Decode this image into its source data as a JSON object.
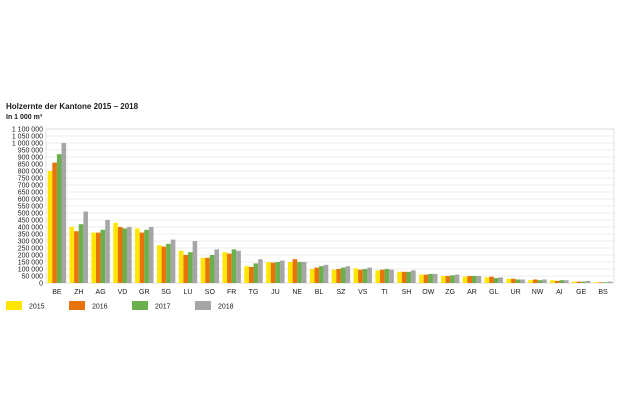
{
  "chart_data": {
    "type": "bar",
    "title": "Holzernte der Kantone 2015 – 2018",
    "ylabel": "In 1 000 m³",
    "xlabel": "",
    "ylim": [
      0,
      1100000
    ],
    "yticks": [
      0,
      50000,
      100000,
      150000,
      200000,
      250000,
      300000,
      350000,
      400000,
      450000,
      500000,
      550000,
      600000,
      650000,
      700000,
      750000,
      800000,
      850000,
      900000,
      950000,
      1000000,
      1050000,
      1100000
    ],
    "ytick_labels": [
      "0",
      "50 000",
      "100 000",
      "150 000",
      "200 000",
      "250 000",
      "300 000",
      "350 000",
      "400 000",
      "450 000",
      "500 000",
      "550 000",
      "600 000",
      "650 000",
      "700 000",
      "750 000",
      "800 000",
      "850 000",
      "900 000",
      "950 000",
      "1 000 000",
      "1 050 000",
      "1 100 000"
    ],
    "grid": true,
    "legend_position": "bottom-left",
    "categories": [
      "BE",
      "ZH",
      "AG",
      "VD",
      "GR",
      "SG",
      "LU",
      "SO",
      "FR",
      "TG",
      "JU",
      "NE",
      "BL",
      "SZ",
      "VS",
      "TI",
      "SH",
      "OW",
      "ZG",
      "AR",
      "GL",
      "UR",
      "NW",
      "AI",
      "GE",
      "BS"
    ],
    "series": [
      {
        "name": "2015",
        "color": "#ffe600",
        "values": [
          800000,
          400000,
          360000,
          430000,
          390000,
          270000,
          230000,
          180000,
          220000,
          120000,
          150000,
          150000,
          100000,
          95000,
          105000,
          90000,
          80000,
          60000,
          50000,
          45000,
          40000,
          30000,
          20000,
          20000,
          10000,
          5000
        ]
      },
      {
        "name": "2016",
        "color": "#e8730a",
        "values": [
          860000,
          370000,
          360000,
          400000,
          360000,
          260000,
          200000,
          180000,
          210000,
          115000,
          145000,
          170000,
          110000,
          100000,
          95000,
          95000,
          80000,
          60000,
          50000,
          50000,
          45000,
          30000,
          25000,
          15000,
          10000,
          5000
        ]
      },
      {
        "name": "2017",
        "color": "#6ab04c",
        "values": [
          920000,
          420000,
          380000,
          390000,
          380000,
          280000,
          220000,
          200000,
          240000,
          140000,
          150000,
          150000,
          120000,
          110000,
          100000,
          100000,
          80000,
          65000,
          55000,
          50000,
          35000,
          25000,
          20000,
          20000,
          10000,
          5000
        ]
      },
      {
        "name": "2018",
        "color": "#a6a6a6",
        "values": [
          1000000,
          510000,
          450000,
          400000,
          400000,
          310000,
          300000,
          240000,
          230000,
          170000,
          160000,
          150000,
          130000,
          120000,
          110000,
          95000,
          90000,
          65000,
          60000,
          50000,
          40000,
          25000,
          25000,
          20000,
          15000,
          10000
        ]
      }
    ]
  }
}
